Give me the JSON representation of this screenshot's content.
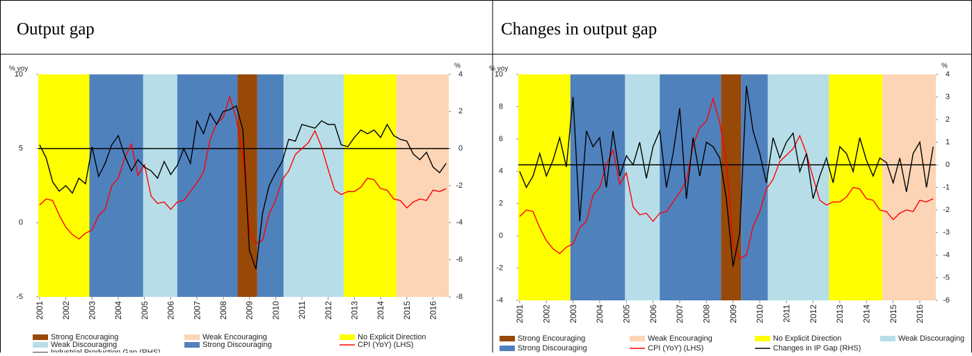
{
  "chart_data": [
    {
      "type": "line",
      "title": "Output gap",
      "ylabel": "% yoy",
      "y2label": "%",
      "xlim": [
        2000.95,
        2016.6
      ],
      "xticks": [
        2001,
        2002,
        2003,
        2004,
        2005,
        2006,
        2007,
        2008,
        2009,
        2010,
        2011,
        2012,
        2013,
        2014,
        2015,
        2016
      ],
      "ylim": [
        -5,
        10
      ],
      "yticks": [
        -5,
        0,
        5,
        10
      ],
      "y2lim": [
        -8,
        4
      ],
      "y2ticks": [
        -8,
        -6,
        -4,
        -2,
        0,
        2,
        4
      ],
      "hline_y2": 0,
      "regimes": [
        {
          "name": "Strong Encouraging",
          "color": "#984807"
        },
        {
          "name": "Weak Encouraging",
          "color": "#FBD5B5"
        },
        {
          "name": "No Explicit Direction",
          "color": "#FFFF00"
        },
        {
          "name": "Weak Discouraging",
          "color": "#B7DEE8"
        },
        {
          "name": "Strong Discouraging",
          "color": "#4F81BD"
        }
      ],
      "bands": [
        {
          "regime": 2,
          "start": 2000.95,
          "end": 2002.9
        },
        {
          "regime": 4,
          "start": 2002.9,
          "end": 2004.95
        },
        {
          "regime": 3,
          "start": 2004.95,
          "end": 2006.25
        },
        {
          "regime": 4,
          "start": 2006.25,
          "end": 2008.55
        },
        {
          "regime": 0,
          "start": 2008.55,
          "end": 2009.3
        },
        {
          "regime": 4,
          "start": 2009.3,
          "end": 2010.3
        },
        {
          "regime": 3,
          "start": 2010.3,
          "end": 2012.6
        },
        {
          "regime": 2,
          "start": 2012.6,
          "end": 2014.6
        },
        {
          "regime": 1,
          "start": 2014.6,
          "end": 2016.6
        }
      ],
      "x": [
        2001,
        2001.25,
        2001.5,
        2001.75,
        2002,
        2002.25,
        2002.5,
        2002.75,
        2003,
        2003.25,
        2003.5,
        2003.75,
        2004,
        2004.25,
        2004.5,
        2004.75,
        2005,
        2005.25,
        2005.5,
        2005.75,
        2006,
        2006.25,
        2006.5,
        2006.75,
        2007,
        2007.25,
        2007.5,
        2007.75,
        2008,
        2008.25,
        2008.5,
        2008.75,
        2009,
        2009.25,
        2009.5,
        2009.75,
        2010,
        2010.25,
        2010.5,
        2010.75,
        2011,
        2011.25,
        2011.5,
        2011.75,
        2012,
        2012.25,
        2012.5,
        2012.75,
        2013,
        2013.25,
        2013.5,
        2013.75,
        2014,
        2014.25,
        2014.5,
        2014.75,
        2015,
        2015.25,
        2015.5,
        2015.75,
        2016,
        2016.25,
        2016.5
      ],
      "series": [
        {
          "name": "CPI (YoY) (LHS)",
          "color": "#FF0000",
          "values": [
            1.2,
            1.6,
            1.5,
            0.5,
            -0.3,
            -0.8,
            -1.1,
            -0.7,
            -0.5,
            0.5,
            0.9,
            2.5,
            3.0,
            4.4,
            5.3,
            3.2,
            3.9,
            1.8,
            1.3,
            1.4,
            0.9,
            1.4,
            1.5,
            2.1,
            2.7,
            3.4,
            5.6,
            6.7,
            7.1,
            8.5,
            7.0,
            4.6,
            -0.6,
            -1.4,
            -1.2,
            0.6,
            1.5,
            2.9,
            3.5,
            4.6,
            5.0,
            5.4,
            6.2,
            5.1,
            3.6,
            2.2,
            1.9,
            2.1,
            2.1,
            2.4,
            3.0,
            2.9,
            2.3,
            2.2,
            1.6,
            1.5,
            1.0,
            1.4,
            1.6,
            1.5,
            2.2,
            2.1,
            2.3
          ]
        },
        {
          "name": "Industrial Production Gap (RHS)",
          "color": "#000000",
          "axis": "y2",
          "values": [
            0.2,
            -0.5,
            -1.8,
            -2.3,
            -2.0,
            -2.4,
            -1.6,
            -1.9,
            0.1,
            -1.5,
            -0.8,
            0.2,
            0.7,
            -0.4,
            -1.2,
            -0.6,
            -1.0,
            -1.2,
            -1.6,
            -0.7,
            -1.4,
            -0.9,
            0.0,
            -0.8,
            1.5,
            0.8,
            1.9,
            1.3,
            2.0,
            2.1,
            2.3,
            1.0,
            -5.5,
            -6.5,
            -3.5,
            -2.0,
            -1.3,
            -0.7,
            0.5,
            0.4,
            1.3,
            1.2,
            1.1,
            1.5,
            1.3,
            1.3,
            0.2,
            0.1,
            0.6,
            1.0,
            0.8,
            1.0,
            0.6,
            1.3,
            0.7,
            0.5,
            0.4,
            -0.3,
            -0.6,
            -0.2,
            -1.0,
            -1.3,
            -0.8
          ]
        }
      ]
    },
    {
      "type": "line",
      "title": "Changes in output gap",
      "ylabel": "% yoy",
      "y2label": "%",
      "xlim": [
        2000.95,
        2016.6
      ],
      "xticks": [
        2001,
        2002,
        2003,
        2004,
        2005,
        2006,
        2007,
        2008,
        2009,
        2010,
        2011,
        2012,
        2013,
        2014,
        2015,
        2016
      ],
      "ylim": [
        -4,
        10
      ],
      "yticks": [
        -4,
        -2,
        0,
        2,
        4,
        6,
        8,
        10
      ],
      "y2lim": [
        -6,
        4
      ],
      "y2ticks": [
        -6,
        -5,
        -4,
        -3,
        -2,
        -1,
        0,
        1,
        2,
        3,
        4
      ],
      "hline_y2": 0,
      "regimes": [
        {
          "name": "Strong Encouraging",
          "color": "#984807"
        },
        {
          "name": "Weak Encouraging",
          "color": "#FBD5B5"
        },
        {
          "name": "No Explicit Direction",
          "color": "#FFFF00"
        },
        {
          "name": "Weak Discouraging",
          "color": "#B7DEE8"
        },
        {
          "name": "Strong Discouraging",
          "color": "#4F81BD"
        }
      ],
      "bands": [
        {
          "regime": 2,
          "start": 2000.95,
          "end": 2002.9
        },
        {
          "regime": 4,
          "start": 2002.9,
          "end": 2004.95
        },
        {
          "regime": 3,
          "start": 2004.95,
          "end": 2006.25
        },
        {
          "regime": 4,
          "start": 2006.25,
          "end": 2008.55
        },
        {
          "regime": 0,
          "start": 2008.55,
          "end": 2009.3
        },
        {
          "regime": 4,
          "start": 2009.3,
          "end": 2010.3
        },
        {
          "regime": 3,
          "start": 2010.3,
          "end": 2012.6
        },
        {
          "regime": 2,
          "start": 2012.6,
          "end": 2014.6
        },
        {
          "regime": 1,
          "start": 2014.6,
          "end": 2016.6
        }
      ],
      "x": [
        2001,
        2001.25,
        2001.5,
        2001.75,
        2002,
        2002.25,
        2002.5,
        2002.75,
        2003,
        2003.25,
        2003.5,
        2003.75,
        2004,
        2004.25,
        2004.5,
        2004.75,
        2005,
        2005.25,
        2005.5,
        2005.75,
        2006,
        2006.25,
        2006.5,
        2006.75,
        2007,
        2007.25,
        2007.5,
        2007.75,
        2008,
        2008.25,
        2008.5,
        2008.75,
        2009,
        2009.25,
        2009.5,
        2009.75,
        2010,
        2010.25,
        2010.5,
        2010.75,
        2011,
        2011.25,
        2011.5,
        2011.75,
        2012,
        2012.25,
        2012.5,
        2012.75,
        2013,
        2013.25,
        2013.5,
        2013.75,
        2014,
        2014.25,
        2014.5,
        2014.75,
        2015,
        2015.25,
        2015.5,
        2015.75,
        2016,
        2016.25,
        2016.5
      ],
      "series": [
        {
          "name": "CPI (YoY) (LHS)",
          "color": "#FF0000",
          "values": [
            1.2,
            1.6,
            1.5,
            0.5,
            -0.3,
            -0.8,
            -1.1,
            -0.7,
            -0.5,
            0.5,
            0.9,
            2.5,
            3.0,
            4.4,
            5.3,
            3.2,
            3.9,
            1.8,
            1.3,
            1.4,
            0.9,
            1.4,
            1.5,
            2.1,
            2.7,
            3.4,
            5.6,
            6.7,
            7.1,
            8.5,
            7.0,
            4.6,
            -0.6,
            -1.4,
            -1.2,
            0.6,
            1.5,
            2.9,
            3.5,
            4.6,
            5.0,
            5.4,
            6.2,
            5.1,
            3.6,
            2.2,
            1.9,
            2.1,
            2.1,
            2.4,
            3.0,
            2.9,
            2.3,
            2.2,
            1.6,
            1.5,
            1.0,
            1.4,
            1.6,
            1.5,
            2.2,
            2.1,
            2.3
          ]
        },
        {
          "name": "Changes in IP Gap (RHS)",
          "color": "#000000",
          "axis": "y2",
          "values": [
            -0.3,
            -1.0,
            -0.5,
            0.5,
            -0.5,
            0.2,
            1.2,
            -0.1,
            3.0,
            -2.5,
            1.5,
            0.8,
            1.2,
            -1.0,
            1.5,
            -0.5,
            0.4,
            0.0,
            1.0,
            -0.6,
            0.8,
            1.5,
            -1.0,
            0.5,
            2.5,
            -1.5,
            1.2,
            -0.5,
            1.0,
            0.8,
            0.3,
            -1.5,
            -4.5,
            -3.0,
            3.5,
            1.5,
            0.5,
            -0.8,
            1.2,
            0.3,
            1.0,
            1.4,
            -0.3,
            0.5,
            -1.5,
            -0.5,
            0.3,
            -0.8,
            0.8,
            0.5,
            -0.3,
            1.2,
            0.2,
            -0.5,
            0.3,
            0.1,
            -0.8,
            0.3,
            -1.2,
            0.5,
            1.0,
            -1.0,
            0.8
          ]
        }
      ]
    }
  ]
}
